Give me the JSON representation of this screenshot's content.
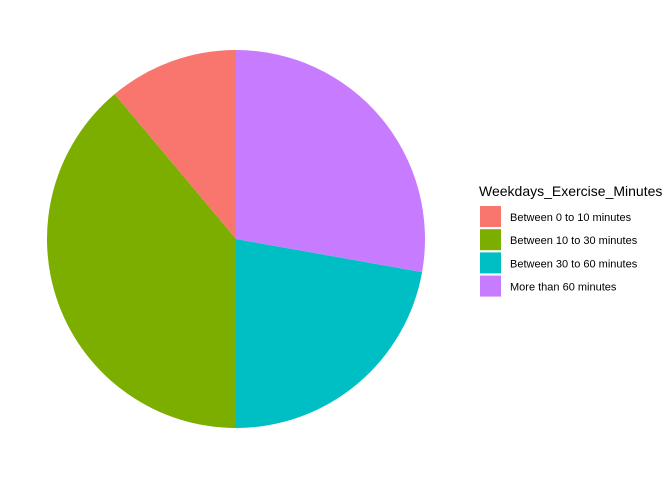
{
  "chart_data": {
    "type": "pie",
    "title": "",
    "legend": {
      "title": "Weekdays_Exercise_Minutes",
      "placement": "right"
    },
    "start_angle_deg": 0,
    "direction": "counter-clockwise",
    "slices": [
      {
        "label": "Between 0 to 10 minutes",
        "value": 0.111,
        "color": "#F8766D"
      },
      {
        "label": "Between 10 to 30 minutes",
        "value": 0.389,
        "color": "#7CAE00"
      },
      {
        "label": "Between 30 to 60 minutes",
        "value": 0.222,
        "color": "#00BFC4"
      },
      {
        "label": "More than 60 minutes",
        "value": 0.278,
        "color": "#C77CFF"
      }
    ]
  }
}
